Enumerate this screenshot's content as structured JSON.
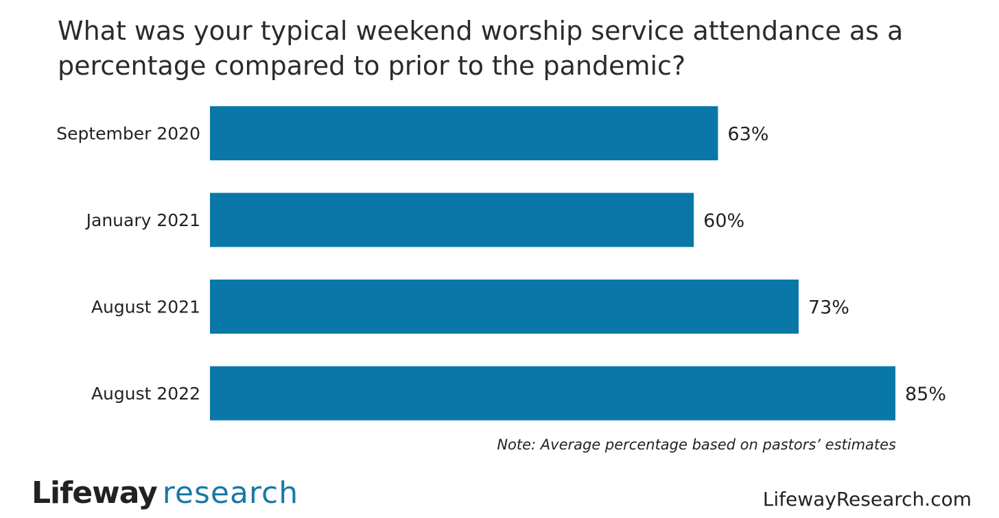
{
  "header": {
    "title": "What was your typical weekend worship service attendance as a percentage compared to prior to the pandemic?"
  },
  "chart_data": {
    "type": "bar",
    "orientation": "horizontal",
    "categories": [
      "September 2020",
      "January 2021",
      "August 2021",
      "August 2022"
    ],
    "values": [
      63,
      60,
      73,
      85
    ],
    "value_labels": [
      "63%",
      "60%",
      "73%",
      "85%"
    ],
    "title": "What was your typical weekend worship service attendance as a percentage compared to prior to the pandemic?",
    "xlabel": "",
    "ylabel": "",
    "xlim": [
      0,
      85
    ],
    "grid": false,
    "legend": "none",
    "bar_color": "#0978a8"
  },
  "footer": {
    "note": "Note: Average percentage based on pastors’ estimates",
    "logo_word_1": "Lifeway",
    "logo_word_2": "research",
    "website": "LifewayResearch.com"
  },
  "colors": {
    "bar": "#0978a8",
    "brand_accent": "#1a78a8",
    "text": "#222222",
    "background": "#ffffff"
  }
}
